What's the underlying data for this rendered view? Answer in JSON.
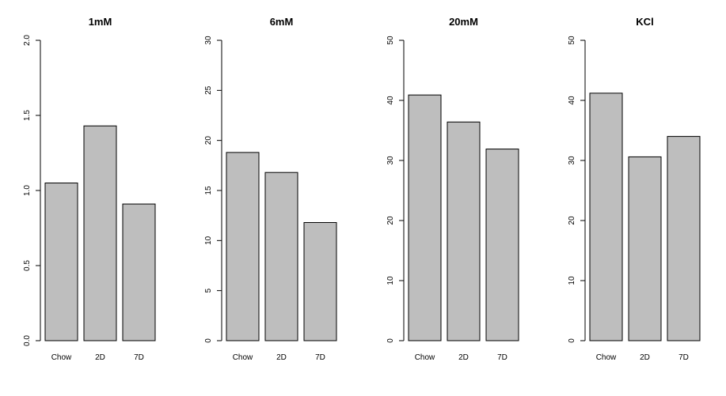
{
  "chart_data": [
    {
      "type": "bar",
      "title": "1mM",
      "categories": [
        "Chow",
        "2D",
        "7D"
      ],
      "values": [
        1.05,
        1.43,
        0.91
      ],
      "ylim": [
        0,
        2
      ],
      "yticks": [
        "0.0",
        "0.5",
        "1.0",
        "1.5",
        "2.0"
      ],
      "grid": false,
      "bar_color": "#bebebe"
    },
    {
      "type": "bar",
      "title": "6mM",
      "categories": [
        "Chow",
        "2D",
        "7D"
      ],
      "values": [
        18.8,
        16.8,
        11.8
      ],
      "ylim": [
        0,
        30
      ],
      "yticks": [
        "0",
        "5",
        "10",
        "15",
        "20",
        "25",
        "30"
      ],
      "grid": false,
      "bar_color": "#bebebe"
    },
    {
      "type": "bar",
      "title": "20mM",
      "categories": [
        "Chow",
        "2D",
        "7D"
      ],
      "values": [
        40.9,
        36.4,
        31.9
      ],
      "ylim": [
        0,
        50
      ],
      "yticks": [
        "0",
        "10",
        "20",
        "30",
        "40",
        "50"
      ],
      "grid": false,
      "bar_color": "#bebebe"
    },
    {
      "type": "bar",
      "title": "KCl",
      "categories": [
        "Chow",
        "2D",
        "7D"
      ],
      "values": [
        41.2,
        30.6,
        34.0
      ],
      "ylim": [
        0,
        50
      ],
      "yticks": [
        "0",
        "10",
        "20",
        "30",
        "40",
        "50"
      ],
      "grid": false,
      "bar_color": "#bebebe"
    }
  ]
}
